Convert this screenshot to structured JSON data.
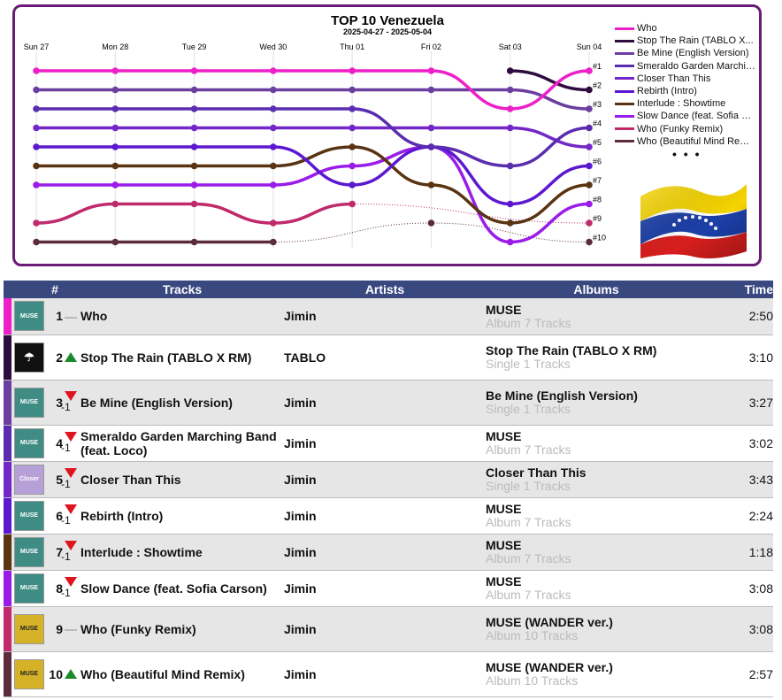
{
  "chart_data": {
    "type": "line",
    "title": "TOP 10 Venezuela",
    "subtitle": "2025-04-27 - 2025-05-04",
    "x": [
      "Sun 27",
      "Mon 28",
      "Tue 29",
      "Wed 30",
      "Thu 01",
      "Fri 02",
      "Sat 03",
      "Sun 04"
    ],
    "y_tick_labels": [
      "#1",
      "#2",
      "#3",
      "#4",
      "#5",
      "#6",
      "#7",
      "#8",
      "#9",
      "#10"
    ],
    "ylim": [
      1,
      10
    ],
    "y_inverted": true,
    "grid": "vertical",
    "legend_position": "right",
    "series": [
      {
        "name": "Who",
        "color": "#ee1fc8",
        "ranks": [
          1,
          1,
          1,
          1,
          1,
          1,
          3,
          1
        ]
      },
      {
        "name": "Stop The Rain (TABLO X...",
        "color": "#2e0c3e",
        "ranks": [
          null,
          null,
          null,
          null,
          null,
          null,
          1,
          2
        ]
      },
      {
        "name": "Be Mine (English Version)",
        "color": "#6c3ea0",
        "ranks": [
          2,
          2,
          2,
          2,
          2,
          2,
          2,
          3
        ]
      },
      {
        "name": "Smeraldo Garden Marching...",
        "color": "#5a2db0",
        "ranks": [
          3,
          3,
          3,
          3,
          3,
          5,
          6,
          4
        ]
      },
      {
        "name": "Closer Than This",
        "color": "#7427c8",
        "ranks": [
          4,
          4,
          4,
          4,
          4,
          4,
          4,
          5
        ]
      },
      {
        "name": "Rebirth (Intro)",
        "color": "#5c18d0",
        "ranks": [
          5,
          5,
          5,
          5,
          7,
          5,
          8,
          6
        ]
      },
      {
        "name": "Interlude : Showtime",
        "color": "#5a3412",
        "ranks": [
          6,
          6,
          6,
          6,
          5,
          7,
          9,
          7
        ]
      },
      {
        "name": "Slow Dance (feat. Sofia Ca...",
        "color": "#9a1ce8",
        "ranks": [
          7,
          7,
          7,
          7,
          6,
          5,
          10,
          8
        ]
      },
      {
        "name": "Who (Funky Remix)",
        "color": "#c02a6a",
        "ranks": [
          9,
          8,
          8,
          9,
          8,
          null,
          null,
          9
        ]
      },
      {
        "name": "Who (Beautiful Mind Remix)",
        "color": "#5c2c3c",
        "ranks": [
          10,
          10,
          10,
          10,
          null,
          9,
          null,
          10
        ]
      }
    ]
  },
  "legend_more": "• • •",
  "table": {
    "headers": {
      "num": "#",
      "tracks": "Tracks",
      "artists": "Artists",
      "albums": "Albums",
      "time": "Time"
    },
    "rows": [
      {
        "rank": "1",
        "move": "same",
        "move_num": "",
        "track": "Who",
        "artist": "Jimin",
        "album": "MUSE",
        "album_meta": "Album 7 Tracks",
        "time": "2:50",
        "stripe": "#ee1fc8",
        "art": "muse",
        "art_label": "MUSE"
      },
      {
        "rank": "2",
        "move": "up",
        "move_num": "",
        "track": "Stop The Rain (TABLO X RM)",
        "artist": "TABLO",
        "album": "Stop The Rain (TABLO X RM)",
        "album_meta": "Single 1 Tracks",
        "time": "3:10",
        "stripe": "#2e0c3e",
        "art": "tablo",
        "art_label": "☂"
      },
      {
        "rank": "3",
        "move": "down",
        "move_num": "-1",
        "track": "Be Mine (English Version)",
        "artist": "Jimin",
        "album": "Be Mine (English Version)",
        "album_meta": "Single 1 Tracks",
        "time": "3:27",
        "stripe": "#6c3ea0",
        "art": "muse",
        "art_label": "MUSE"
      },
      {
        "rank": "4",
        "move": "down",
        "move_num": "-1",
        "track": "Smeraldo Garden Marching Band (feat. Loco)",
        "artist": "Jimin",
        "album": "MUSE",
        "album_meta": "Album 7 Tracks",
        "time": "3:02",
        "stripe": "#5a2db0",
        "art": "muse",
        "art_label": "MUSE"
      },
      {
        "rank": "5",
        "move": "down",
        "move_num": "-1",
        "track": "Closer Than This",
        "artist": "Jimin",
        "album": "Closer Than This",
        "album_meta": "Single 1 Tracks",
        "time": "3:43",
        "stripe": "#7427c8",
        "art": "closer",
        "art_label": "Closer"
      },
      {
        "rank": "6",
        "move": "down",
        "move_num": "-1",
        "track": "Rebirth (Intro)",
        "artist": "Jimin",
        "album": "MUSE",
        "album_meta": "Album 7 Tracks",
        "time": "2:24",
        "stripe": "#5c18d0",
        "art": "muse",
        "art_label": "MUSE"
      },
      {
        "rank": "7",
        "move": "down",
        "move_num": "-1",
        "track": "Interlude : Showtime",
        "artist": "Jimin",
        "album": "MUSE",
        "album_meta": "Album 7 Tracks",
        "time": "1:18",
        "stripe": "#5a3412",
        "art": "muse",
        "art_label": "MUSE"
      },
      {
        "rank": "8",
        "move": "down",
        "move_num": "-1",
        "track": "Slow Dance (feat. Sofia Carson)",
        "artist": "Jimin",
        "album": "MUSE",
        "album_meta": "Album 7 Tracks",
        "time": "3:08",
        "stripe": "#9a1ce8",
        "art": "muse",
        "art_label": "MUSE"
      },
      {
        "rank": "9",
        "move": "same",
        "move_num": "",
        "track": "Who (Funky Remix)",
        "artist": "Jimin",
        "album": "MUSE (WANDER ver.)",
        "album_meta": "Album 10 Tracks",
        "time": "3:08",
        "stripe": "#c02a6a",
        "art": "wander",
        "art_label": "MUSE"
      },
      {
        "rank": "10",
        "move": "up",
        "move_num": "",
        "track": "Who (Beautiful Mind Remix)",
        "artist": "Jimin",
        "album": "MUSE (WANDER ver.)",
        "album_meta": "Album 10 Tracks",
        "time": "2:57",
        "stripe": "#5c2c3c",
        "art": "wander",
        "art_label": "MUSE"
      }
    ]
  }
}
